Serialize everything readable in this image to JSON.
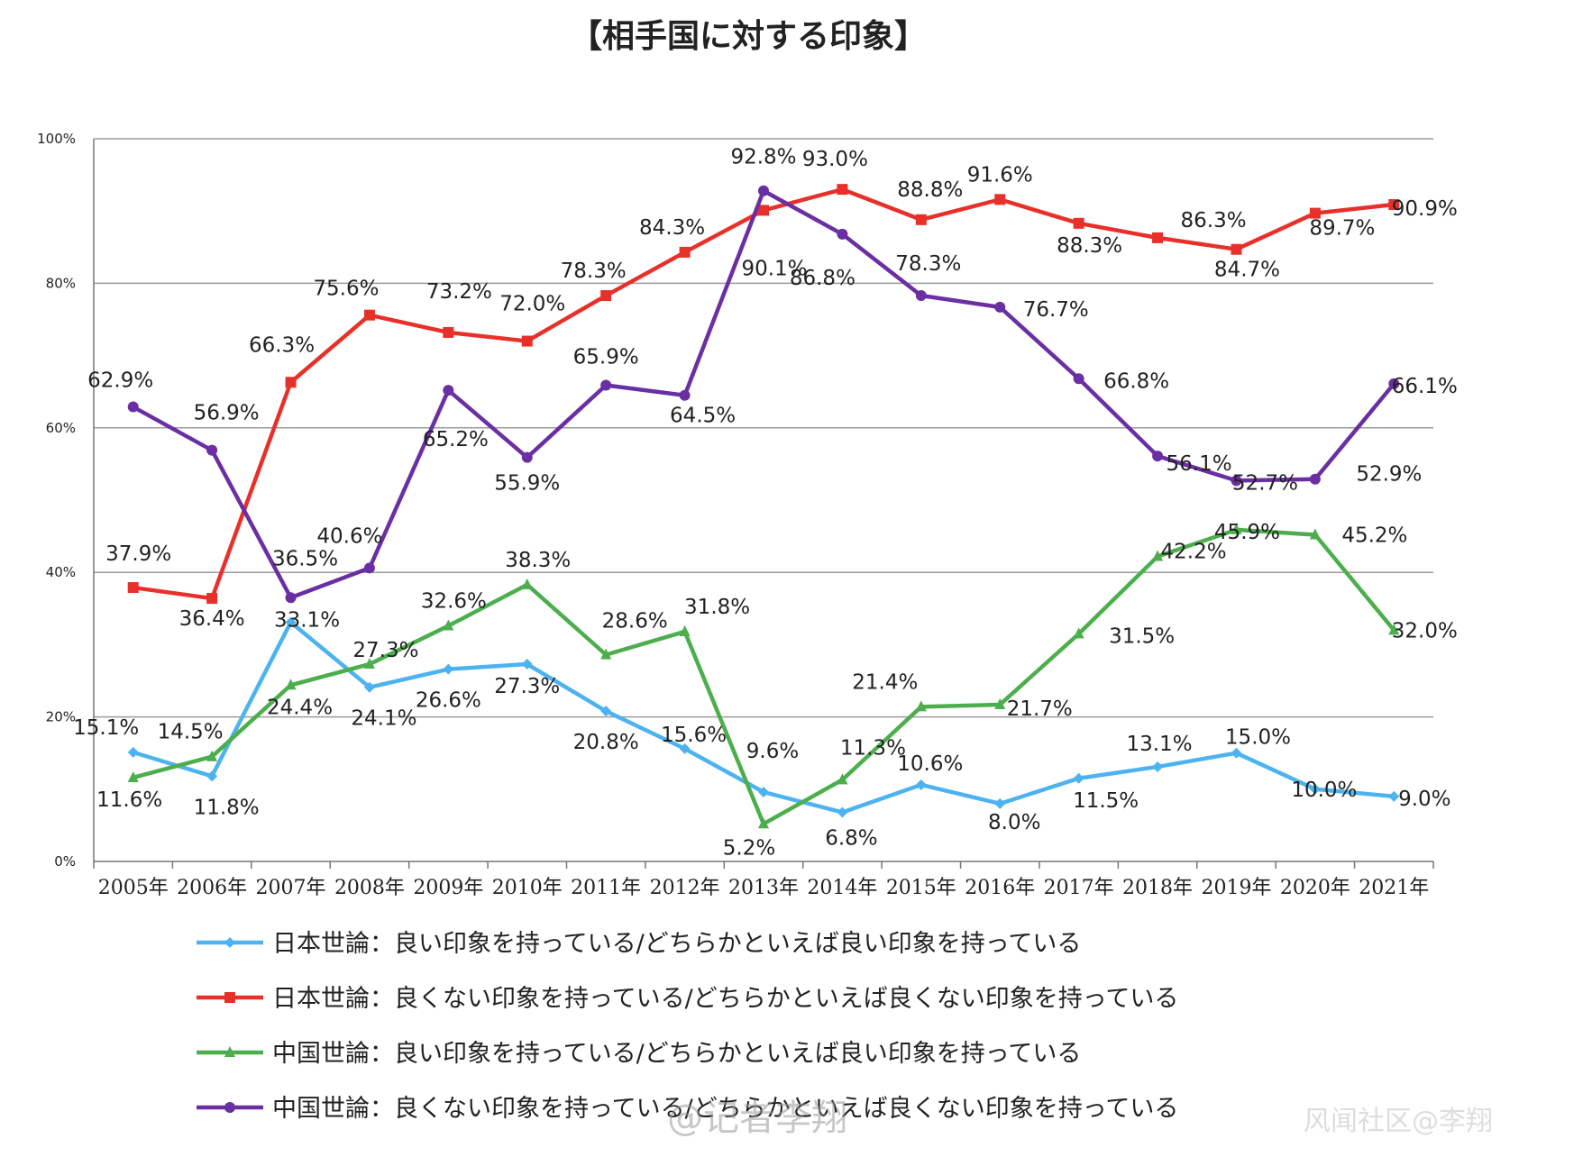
{
  "chart_data": {
    "type": "line",
    "title": "【相手国に対する印象】",
    "ylim": [
      0,
      100
    ],
    "yticks": [
      "0%",
      "20%",
      "40%",
      "60%",
      "80%",
      "100%"
    ],
    "categories": [
      "2005年",
      "2006年",
      "2007年",
      "2008年",
      "2009年",
      "2010年",
      "2011年",
      "2012年",
      "2013年",
      "2014年",
      "2015年",
      "2016年",
      "2017年",
      "2018年",
      "2019年",
      "2020年",
      "2021年"
    ],
    "grid": true,
    "legend_position": "bottom",
    "series": [
      {
        "name": "日本世論：良い印象を持っている/どちらかといえば良い印象を持っている",
        "color": "#4db3f0",
        "marker": "diamond",
        "values": [
          15.1,
          11.8,
          33.1,
          24.1,
          26.6,
          27.3,
          20.8,
          15.6,
          9.6,
          6.8,
          10.6,
          8.0,
          11.5,
          13.1,
          15.0,
          10.0,
          9.0
        ],
        "labels": [
          "15.1%",
          "11.8%",
          "33.1%",
          "24.1%",
          "26.6%",
          "27.3%",
          "20.8%",
          "15.6%",
          "9.6%",
          "6.8%",
          "10.6%",
          "8.0%",
          "11.5%",
          "13.1%",
          "15.0%",
          "10.0%",
          "9.0%"
        ]
      },
      {
        "name": "日本世論：良くない印象を持っている/どちらかといえば良くない印象を持っている",
        "color": "#e8302a",
        "marker": "square",
        "values": [
          37.9,
          36.4,
          66.3,
          75.6,
          73.2,
          72.0,
          78.3,
          84.3,
          90.1,
          93.0,
          88.8,
          91.6,
          88.3,
          86.3,
          84.7,
          89.7,
          90.9
        ],
        "labels": [
          "37.9%",
          "36.4%",
          "66.3%",
          "75.6%",
          "73.2%",
          "72.0%",
          "78.3%",
          "84.3%",
          "90.1%",
          "93.0%",
          "88.8%",
          "91.6%",
          "88.3%",
          "86.3%",
          "84.7%",
          "89.7%",
          "90.9%"
        ]
      },
      {
        "name": "中国世論：良い印象を持っている/どちらかといえば良い印象を持っている",
        "color": "#4cae4c",
        "marker": "triangle",
        "values": [
          11.6,
          14.5,
          24.4,
          27.3,
          32.6,
          38.3,
          28.6,
          31.8,
          5.2,
          11.3,
          21.4,
          21.7,
          31.5,
          42.2,
          45.9,
          45.2,
          32.0
        ],
        "labels": [
          "11.6%",
          "14.5%",
          "24.4%",
          "27.3%",
          "32.6%",
          "38.3%",
          "28.6%",
          "31.8%",
          "5.2%",
          "11.3%",
          "21.4%",
          "21.7%",
          "31.5%",
          "42.2%",
          "45.9%",
          "45.2%",
          "32.0%"
        ]
      },
      {
        "name": "中国世論：良くない印象を持っている/どちらかといえば良くない印象を持っている",
        "color": "#6a2fa3",
        "marker": "circle",
        "values": [
          62.9,
          56.9,
          36.5,
          40.6,
          65.2,
          55.9,
          65.9,
          64.5,
          92.8,
          86.8,
          78.3,
          76.7,
          66.8,
          56.1,
          52.7,
          52.9,
          66.1
        ],
        "labels": [
          "62.9%",
          "56.9%",
          "36.5%",
          "40.6%",
          "65.2%",
          "55.9%",
          "65.9%",
          "64.5%",
          "92.8%",
          "86.8%",
          "78.3%",
          "76.7%",
          "66.8%",
          "56.1%",
          "52.7%",
          "52.9%",
          "66.1%"
        ]
      }
    ]
  },
  "watermark": {
    "text": "@记者李翔",
    "corner_text": "风闻社区@李翔"
  }
}
